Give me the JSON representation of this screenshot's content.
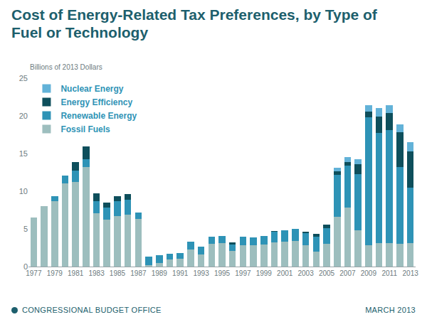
{
  "chart_data": {
    "type": "bar",
    "title": "Cost of Energy-Related Tax Preferences, by Type of Fuel or Technology",
    "ylabel": "Billions of 2013 Dollars",
    "stacked": true,
    "grid": false,
    "legend": "upper left",
    "x": [
      1977,
      1978,
      1979,
      1980,
      1981,
      1982,
      1983,
      1984,
      1985,
      1986,
      1987,
      1988,
      1989,
      1990,
      1991,
      1992,
      1993,
      1994,
      1995,
      1996,
      1997,
      1998,
      1999,
      2000,
      2001,
      2002,
      2003,
      2004,
      2005,
      2006,
      2007,
      2008,
      2009,
      2010,
      2011,
      2012,
      2013
    ],
    "xlim": [
      1976.5,
      2013.5
    ],
    "xticks": [
      1977,
      1979,
      1981,
      1983,
      1985,
      1987,
      1989,
      1991,
      1993,
      1995,
      1997,
      1999,
      2001,
      2003,
      2005,
      2007,
      2009,
      2011,
      2013
    ],
    "ylim": [
      0,
      25
    ],
    "yticks": [
      0,
      5,
      10,
      15,
      20,
      25
    ],
    "series": [
      {
        "name": "Fossil Fuels",
        "color": "#9dbebe",
        "values": [
          6.5,
          8.0,
          8.7,
          11.0,
          11.2,
          13.2,
          7.1,
          6.2,
          6.7,
          6.9,
          6.3,
          0.2,
          0.5,
          0.9,
          1.0,
          2.3,
          1.6,
          3.0,
          3.1,
          2.1,
          2.8,
          2.8,
          2.9,
          3.2,
          3.3,
          3.4,
          2.8,
          2.0,
          3.0,
          6.6,
          7.8,
          4.8,
          2.8,
          3.1,
          3.1,
          3.0,
          3.1
        ]
      },
      {
        "name": "Renewable Energy",
        "color": "#2e93b6",
        "values": [
          0,
          0,
          0.6,
          1.1,
          1.5,
          1.0,
          1.6,
          1.6,
          2.0,
          2.0,
          0.9,
          1.1,
          1.0,
          0.8,
          0.8,
          1.0,
          1.0,
          1.0,
          1.0,
          0.8,
          1.2,
          1.1,
          1.2,
          1.4,
          1.5,
          1.6,
          1.6,
          2.0,
          2.1,
          5.6,
          5.6,
          7.5,
          17.0,
          14.6,
          15.0,
          10.2,
          7.4
        ]
      },
      {
        "name": "Energy Efficiency",
        "color": "#0e4f5c",
        "values": [
          0,
          0,
          0,
          0,
          1.2,
          1.7,
          1.0,
          0.7,
          0.6,
          0.7,
          0,
          0,
          0,
          0,
          0,
          0,
          0,
          0,
          0,
          0.3,
          0,
          0,
          0,
          0.1,
          0,
          0,
          0.2,
          0.3,
          0.5,
          0.4,
          0.5,
          1.3,
          0.8,
          2.2,
          2.3,
          4.6,
          4.8
        ]
      },
      {
        "name": "Nuclear Energy",
        "color": "#62b2d8",
        "values": [
          0,
          0,
          0,
          0,
          0,
          0,
          0,
          0,
          0,
          0,
          0,
          0,
          0,
          0,
          0,
          0,
          0,
          0,
          0,
          0,
          0,
          0,
          0,
          0,
          0,
          0,
          0,
          0,
          0,
          0.5,
          0.6,
          0.6,
          0.8,
          1.1,
          1.0,
          1.1,
          1.2
        ]
      }
    ]
  },
  "footer": {
    "left": "CONGRESSIONAL BUDGET OFFICE",
    "right": "MARCH 2013"
  }
}
